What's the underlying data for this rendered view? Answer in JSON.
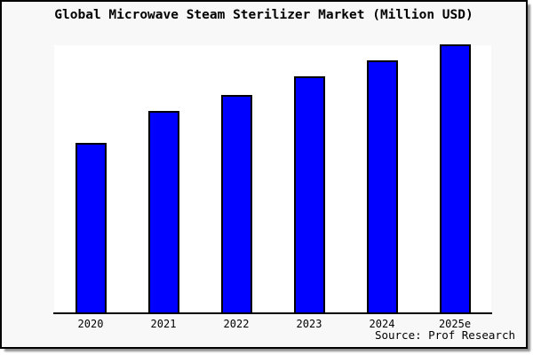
{
  "header": {
    "title": "Global Microwave Steam Sterilizer Market (Million USD)"
  },
  "footer": {
    "source": "Source: Prof Research"
  },
  "colors": {
    "bar_fill": "#0000ff",
    "bar_border": "#000000",
    "frame_background": "#f8f8f8",
    "plot_background": "#ffffff",
    "axis_line": "#000000",
    "frame_border": "#000000",
    "frame_shadow": "#8f8f8f",
    "text": "#000000"
  },
  "chart_data": {
    "type": "bar",
    "title": "Global Microwave Steam Sterilizer Market (Million USD)",
    "categories": [
      "2020",
      "2021",
      "2022",
      "2023",
      "2024",
      "2025e"
    ],
    "values": [
      63,
      75,
      81,
      88,
      94,
      100
    ],
    "value_scale": "relative bar heights; no y-axis tick labels shown; tallest bar (2025e) normalized to 100",
    "xlabel": "",
    "ylabel": "",
    "ylim": [
      0,
      100
    ],
    "grid": false,
    "legend": false,
    "bar_color": "#0000ff",
    "source": "Source: Prof Research"
  }
}
